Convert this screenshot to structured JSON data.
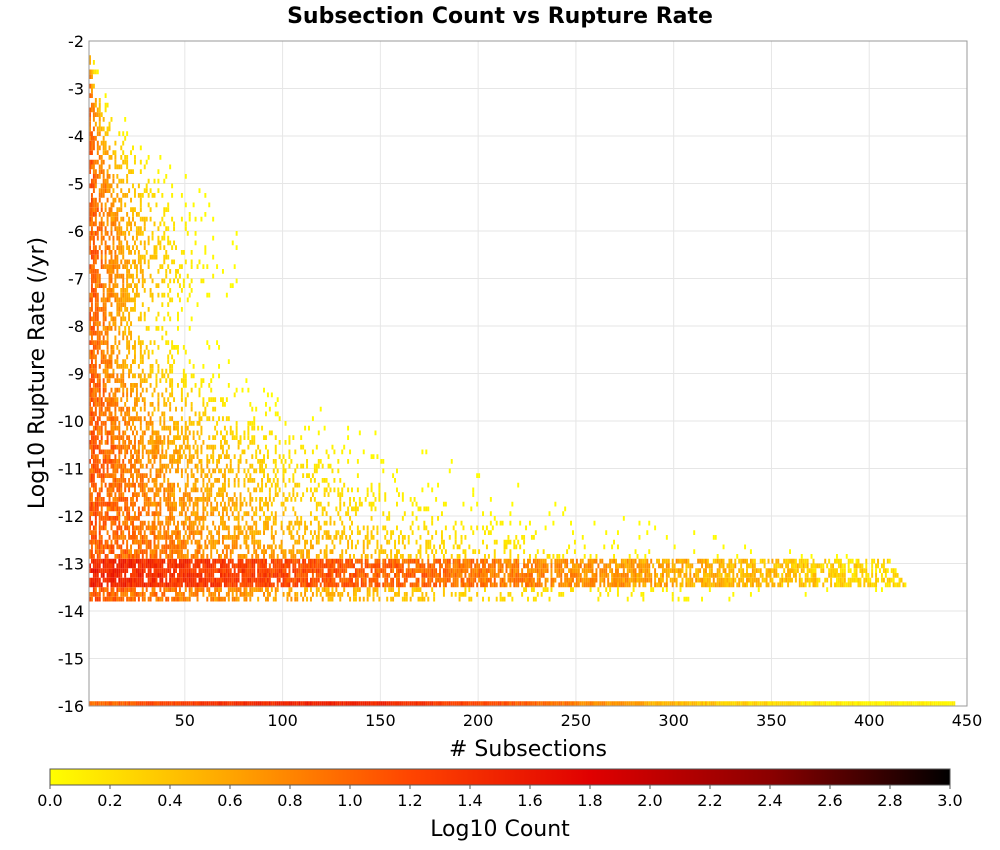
{
  "chart_data": {
    "type": "heatmap",
    "title": "Subsection Count vs Rupture Rate",
    "xlabel": "# Subsections",
    "ylabel": "Log10 Rupture Rate (/yr)",
    "xlim": [
      1,
      450
    ],
    "ylim": [
      -16,
      -2
    ],
    "x_ticks": [
      50,
      100,
      150,
      200,
      250,
      300,
      350,
      400,
      450
    ],
    "y_ticks": [
      -2,
      -3,
      -4,
      -5,
      -6,
      -7,
      -8,
      -9,
      -10,
      -11,
      -12,
      -13,
      -14,
      -15,
      -16
    ],
    "grid": true,
    "colorbar": {
      "label": "Log10 Count",
      "range": [
        0.0,
        3.0
      ],
      "ticks": [
        "0.0",
        "0.2",
        "0.4",
        "0.6",
        "0.8",
        "1.0",
        "1.2",
        "1.4",
        "1.6",
        "1.8",
        "2.0",
        "2.2",
        "2.4",
        "2.6",
        "2.8",
        "3.0"
      ],
      "colors": [
        "#ffff00",
        "#ffa500",
        "#ff4500",
        "#e00000",
        "#8b0000",
        "#000000"
      ]
    },
    "cell_size": {
      "x_subsections": 1,
      "y_log10": 0.1
    },
    "density_summary": {
      "min_rate_row": {
        "y": -16.0,
        "x_range": [
          1,
          443
        ],
        "peak_x": 120,
        "peak_log10_count": 1.5
      },
      "main_band": {
        "y_range": [
          -13.5,
          -13.0
        ],
        "x_range": [
          1,
          420
        ],
        "peak_log10_count": 1.5
      },
      "max_x_by_rate": [
        {
          "y": -2.2,
          "x_max": 3
        },
        {
          "y": -3.0,
          "x_max": 8
        },
        {
          "y": -4.0,
          "x_max": 25
        },
        {
          "y": -5.0,
          "x_max": 55
        },
        {
          "y": -6.0,
          "x_max": 75
        },
        {
          "y": -7.0,
          "x_max": 85
        },
        {
          "y": -8.0,
          "x_max": 60
        },
        {
          "y": -9.0,
          "x_max": 78
        },
        {
          "y": -10.0,
          "x_max": 130
        },
        {
          "y": -11.0,
          "x_max": 195
        },
        {
          "y": -12.0,
          "x_max": 260
        },
        {
          "y": -13.0,
          "x_max": 410
        },
        {
          "y": -13.6,
          "x_max": 420
        },
        {
          "y": -13.8,
          "x_max": 405
        }
      ]
    }
  }
}
